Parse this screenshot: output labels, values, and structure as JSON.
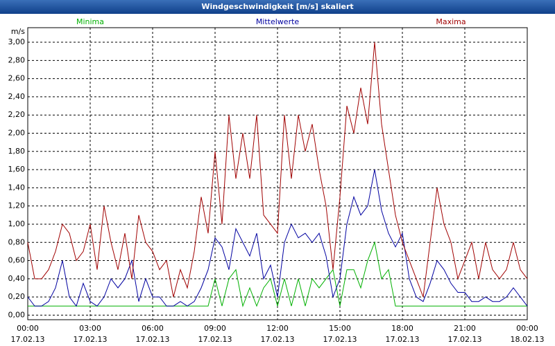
{
  "chart_data": {
    "type": "line",
    "title": "Windgeschwindigkeit [m/s] skaliert",
    "y_unit": "m/s",
    "x": [
      0,
      20,
      40,
      60,
      80,
      100,
      120,
      140,
      160,
      180,
      200,
      220,
      240,
      260,
      280,
      300,
      320,
      340,
      360,
      380,
      400,
      420,
      440,
      460,
      480,
      500,
      520,
      540,
      560,
      580,
      600,
      620,
      640,
      660,
      680,
      700,
      720,
      740,
      760,
      780,
      800,
      820,
      840,
      860,
      880,
      900,
      920,
      940,
      960,
      980,
      1000,
      1020,
      1040,
      1060,
      1080,
      1100,
      1120,
      1140,
      1160,
      1180,
      1200,
      1220,
      1240,
      1260,
      1280,
      1300,
      1320,
      1340,
      1360,
      1380,
      1400,
      1420,
      1440
    ],
    "xlim": [
      0,
      1440
    ],
    "xticks": [
      {
        "value": 0,
        "label": "00:00",
        "date": "17.02.13"
      },
      {
        "value": 180,
        "label": "03:00",
        "date": "17.02.13"
      },
      {
        "value": 360,
        "label": "06:00",
        "date": "17.02.13"
      },
      {
        "value": 540,
        "label": "09:00",
        "date": "17.02.13"
      },
      {
        "value": 720,
        "label": "12:00",
        "date": "17.02.13"
      },
      {
        "value": 900,
        "label": "15:00",
        "date": "17.02.13"
      },
      {
        "value": 1080,
        "label": "18:00",
        "date": "17.02.13"
      },
      {
        "value": 1260,
        "label": "21:00",
        "date": "17.02.13"
      },
      {
        "value": 1440,
        "label": "00:00",
        "date": "18.02.13"
      }
    ],
    "ylim": [
      -0.05,
      3.16
    ],
    "yticks": [
      {
        "value": 0,
        "label": "0,00"
      },
      {
        "value": 0.2,
        "label": "0,20"
      },
      {
        "value": 0.4,
        "label": "0,40"
      },
      {
        "value": 0.6,
        "label": "0,60"
      },
      {
        "value": 0.8,
        "label": "0,80"
      },
      {
        "value": 1.0,
        "label": "1,00"
      },
      {
        "value": 1.2,
        "label": "1,20"
      },
      {
        "value": 1.4,
        "label": "1,40"
      },
      {
        "value": 1.6,
        "label": "1,60"
      },
      {
        "value": 1.8,
        "label": "1,80"
      },
      {
        "value": 2.0,
        "label": "2,00"
      },
      {
        "value": 2.2,
        "label": "2,20"
      },
      {
        "value": 2.4,
        "label": "2,40"
      },
      {
        "value": 2.6,
        "label": "2,60"
      },
      {
        "value": 2.8,
        "label": "2,80"
      },
      {
        "value": 3.0,
        "label": "3,00"
      }
    ],
    "grid": true,
    "series": [
      {
        "name": "Minima",
        "color": "#00b000",
        "values": [
          0.1,
          0.1,
          0.1,
          0.1,
          0.1,
          0.1,
          0.1,
          0.1,
          0.1,
          0.1,
          0.1,
          0.1,
          0.1,
          0.1,
          0.1,
          0.1,
          0.1,
          0.1,
          0.1,
          0.1,
          0.1,
          0.1,
          0.1,
          0.1,
          0.1,
          0.1,
          0.1,
          0.4,
          0.1,
          0.4,
          0.5,
          0.1,
          0.3,
          0.1,
          0.3,
          0.4,
          0.1,
          0.4,
          0.1,
          0.4,
          0.1,
          0.4,
          0.3,
          0.4,
          0.5,
          0.1,
          0.5,
          0.5,
          0.3,
          0.6,
          0.8,
          0.4,
          0.5,
          0.1,
          0.1,
          0.1,
          0.1,
          0.1,
          0.1,
          0.1,
          0.1,
          0.1,
          0.1,
          0.1,
          0.1,
          0.1,
          0.1,
          0.1,
          0.1,
          0.1,
          0.1,
          0.1,
          0.1
        ]
      },
      {
        "name": "Mittelwerte",
        "color": "#0000a0",
        "values": [
          0.2,
          0.1,
          0.1,
          0.15,
          0.3,
          0.6,
          0.2,
          0.1,
          0.35,
          0.15,
          0.1,
          0.2,
          0.4,
          0.3,
          0.4,
          0.6,
          0.15,
          0.4,
          0.2,
          0.2,
          0.1,
          0.1,
          0.15,
          0.1,
          0.15,
          0.3,
          0.5,
          0.85,
          0.75,
          0.5,
          0.95,
          0.8,
          0.65,
          0.9,
          0.4,
          0.55,
          0.2,
          0.8,
          1.0,
          0.85,
          0.9,
          0.8,
          0.9,
          0.65,
          0.2,
          0.4,
          1.0,
          1.3,
          1.1,
          1.2,
          1.6,
          1.15,
          0.9,
          0.75,
          0.9,
          0.4,
          0.2,
          0.15,
          0.35,
          0.6,
          0.5,
          0.35,
          0.25,
          0.25,
          0.15,
          0.15,
          0.2,
          0.15,
          0.15,
          0.2,
          0.3,
          0.2,
          0.1
        ]
      },
      {
        "name": "Maxima",
        "color": "#a00000",
        "values": [
          0.8,
          0.4,
          0.4,
          0.5,
          0.7,
          1.0,
          0.9,
          0.6,
          0.7,
          1.0,
          0.5,
          1.2,
          0.8,
          0.5,
          0.9,
          0.4,
          1.1,
          0.8,
          0.7,
          0.5,
          0.6,
          0.2,
          0.5,
          0.3,
          0.7,
          1.3,
          0.9,
          1.8,
          1.0,
          2.2,
          1.5,
          2.0,
          1.5,
          2.2,
          1.1,
          1.0,
          0.9,
          2.2,
          1.5,
          2.2,
          1.8,
          2.1,
          1.6,
          1.2,
          0.5,
          1.3,
          2.3,
          2.0,
          2.5,
          2.1,
          3.0,
          2.1,
          1.6,
          1.1,
          0.8,
          0.6,
          0.4,
          0.2,
          0.8,
          1.4,
          1.0,
          0.8,
          0.4,
          0.6,
          0.8,
          0.4,
          0.8,
          0.5,
          0.4,
          0.5,
          0.8,
          0.5,
          0.4
        ]
      }
    ]
  }
}
